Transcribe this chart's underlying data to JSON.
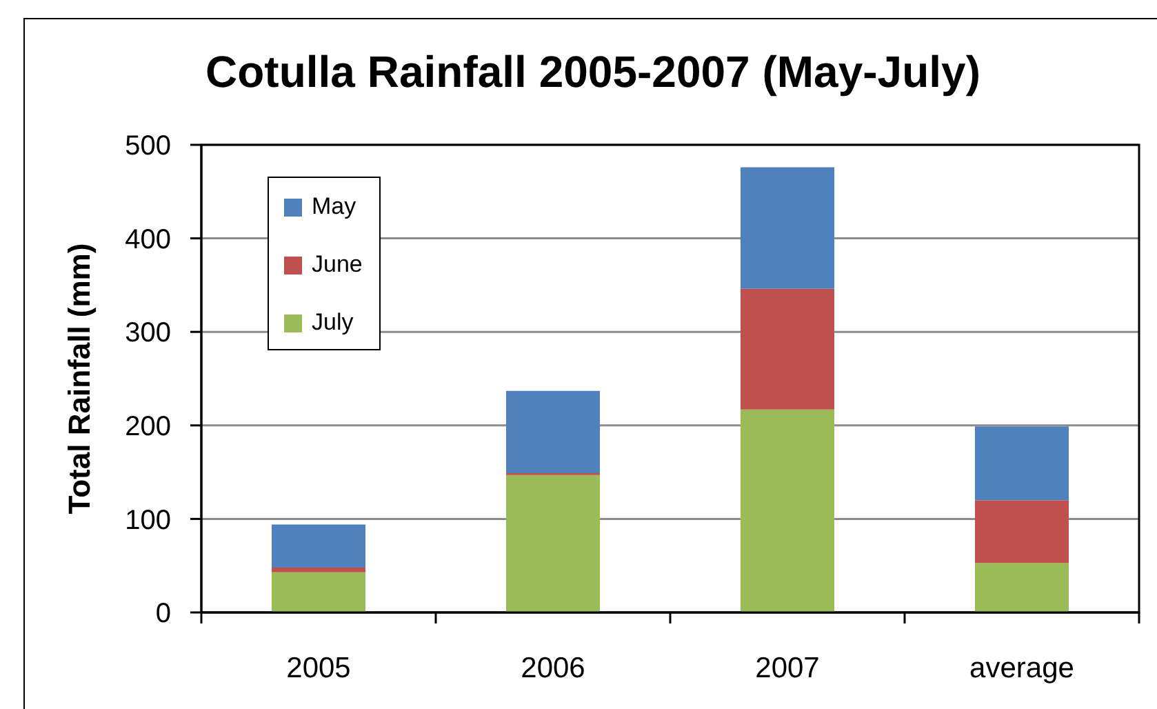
{
  "chart_data": {
    "type": "bar",
    "title": "Cotulla Rainfall 2005-2007 (May-July)",
    "ylabel": "Total Rainfall (mm)",
    "categories": [
      "2005",
      "2006",
      "2007",
      "average"
    ],
    "series": [
      {
        "name": "July",
        "color": "#9bbb59",
        "values": [
          43,
          147,
          217,
          53
        ]
      },
      {
        "name": "June",
        "color": "#c0504d",
        "values": [
          5,
          2,
          129,
          67
        ]
      },
      {
        "name": "May",
        "color": "#4f81bd",
        "values": [
          46,
          88,
          130,
          79
        ]
      }
    ],
    "stacked": true,
    "ylim": [
      0,
      500
    ],
    "yticks": [
      0,
      100,
      200,
      300,
      400,
      500
    ],
    "grid": "y",
    "legend": "top left"
  }
}
